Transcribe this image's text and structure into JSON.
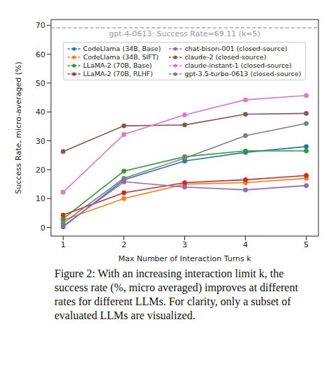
{
  "chart_data": {
    "type": "line",
    "x_label": "Max Number of Interaction Turns k",
    "y_label": "Success Rate, micro-averaged (%)",
    "x": [
      1,
      2,
      3,
      4,
      5
    ],
    "xlim": [
      0.8,
      5.2
    ],
    "xticks": [
      1,
      2,
      3,
      4,
      5
    ],
    "ylim": [
      -3,
      72
    ],
    "yticks": [
      0,
      10,
      20,
      30,
      40,
      50,
      60,
      70
    ],
    "grid": false,
    "legend": "upper left",
    "marker": "o",
    "reference": {
      "value": 69.11,
      "label": "gpt-4-0613: Success Rate=69.11 (k=5)",
      "color": "#999999",
      "line_style": "dashed"
    },
    "series": [
      {
        "name": "CodeLlama (34B, Base)",
        "color": "#1f77b4",
        "values": [
          0.2,
          16.5,
          23,
          26,
          28
        ]
      },
      {
        "name": "CodeLlama (34B, SIFT)",
        "color": "#ff7f0e",
        "values": [
          2.5,
          10,
          15,
          15.5,
          17
        ]
      },
      {
        "name": "LLaMA-2 (70B, Base)",
        "color": "#2ca02c",
        "values": [
          3,
          19.5,
          24.5,
          26.5,
          26.5
        ]
      },
      {
        "name": "LLaMA-2 (70B, RLHF)",
        "color": "#d62728",
        "values": [
          4.3,
          12,
          15.5,
          16.5,
          18
        ]
      },
      {
        "name": "chat-bison-001 (closed-source)",
        "color": "#9467bd",
        "values": [
          0.5,
          15.8,
          14,
          13,
          14.5
        ]
      },
      {
        "name": "claude-2 (closed-source)",
        "color": "#8c564b",
        "values": [
          26.3,
          35.2,
          35.5,
          39.2,
          39.5
        ]
      },
      {
        "name": "claude-instant-1 (closed-source)",
        "color": "#e377c2",
        "values": [
          12.2,
          32.2,
          39,
          44.2,
          45.7
        ]
      },
      {
        "name": "gpt-3.5-turbo-0613 (closed-source)",
        "color": "#7f7f7f",
        "values": [
          1.5,
          17,
          24,
          31.8,
          36
        ]
      }
    ],
    "caption": "Figure 2: With an increasing interaction limit k, the success rate (%, micro averaged) improves at different rates for different LLMs. For clarity, only a subset of evaluated LLMs are visualized."
  }
}
